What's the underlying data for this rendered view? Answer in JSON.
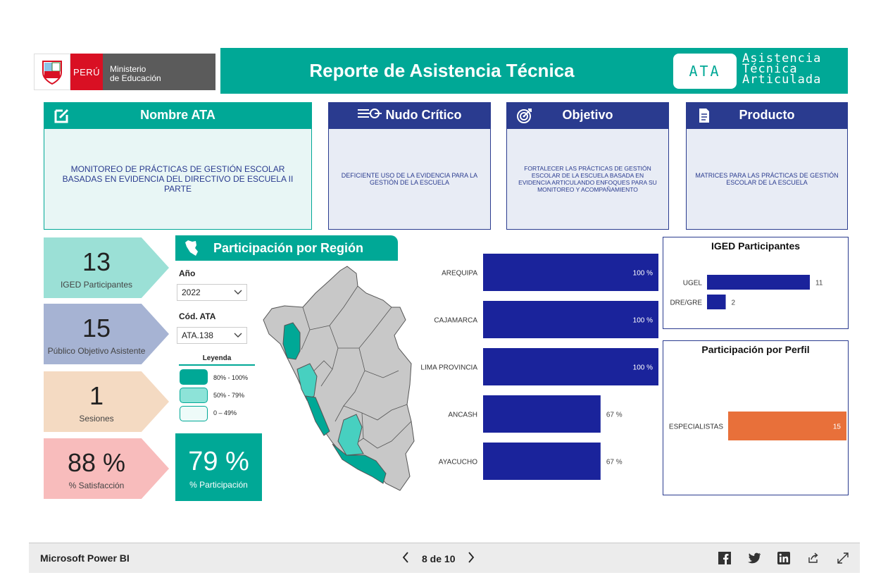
{
  "header": {
    "logo_country": "PERÚ",
    "logo_ministry_line1": "Ministerio",
    "logo_ministry_line2": "de Educación",
    "title": "Reporte de Asistencia Técnica",
    "badge": "ATA",
    "brand_line1": "Asistencia",
    "brand_line2": "Técnica",
    "brand_line3": "Articulada"
  },
  "cards": {
    "nombre": {
      "title": "Nombre ATA",
      "body": "MONITOREO DE PRÁCTICAS DE GESTIÓN ESCOLAR BASADAS EN EVIDENCIA DEL DIRECTIVO DE ESCUELA II PARTE",
      "icon": "edit-icon"
    },
    "nudo": {
      "title": "Nudo Crítico",
      "body": "DEFICIENTE USO DE LA EVIDENCIA PARA LA GESTIÓN DE LA ESCUELA",
      "icon": "node-icon"
    },
    "objetivo": {
      "title": "Objetivo",
      "body": "FORTALECER LAS PRÁCTICAS DE GESTIÓN ESCOLAR DE LA ESCUELA BASADA EN EVIDENCIA ARTICULANDO ENFOQUES PARA SU MONITOREO Y ACOMPAÑAMIENTO",
      "icon": "target-icon"
    },
    "producto": {
      "title": "Producto",
      "body": "MATRICES PARA LAS PRÁCTICAS DE GESTIÓN ESCOLAR DE LA ESCUELA",
      "icon": "document-icon"
    }
  },
  "kpis": {
    "iged": {
      "value": "13",
      "label": "IGED Participantes"
    },
    "publico": {
      "value": "15",
      "label": "Público Objetivo Asistente"
    },
    "sesiones": {
      "value": "1",
      "label": "Sesiones"
    },
    "satisfaccion": {
      "value": "88 %",
      "label": "% Satisfacción"
    }
  },
  "region": {
    "title": "Participación por Región",
    "year_label": "Año",
    "year_value": "2022",
    "code_label": "Cód. ATA",
    "code_value": "ATA.138",
    "legend_title": "Leyenda",
    "legend": [
      {
        "label": "80% - 100%",
        "color": "#00a896"
      },
      {
        "label": "50% - 79%",
        "color": "#8de3d8"
      },
      {
        "label": "0 – 49%",
        "color": "#eefbf9"
      }
    ],
    "participation_value": "79 %",
    "participation_label": "% Participación"
  },
  "colors": {
    "teal": "#00a896",
    "navy": "#2a3b8f",
    "bar_blue": "#1a239b",
    "orange": "#e8703a",
    "map_grey": "#c8c8c8"
  },
  "chart_data": [
    {
      "type": "bar",
      "orientation": "horizontal",
      "categories": [
        "AREQUIPA",
        "CAJAMARCA",
        "LIMA PROVINCIA",
        "ANCASH",
        "AYACUCHO"
      ],
      "values": [
        100,
        100,
        100,
        67,
        67
      ],
      "value_labels": [
        "100 %",
        "100 %",
        "100 %",
        "67 %",
        "67 %"
      ],
      "xlim": [
        0,
        100
      ]
    },
    {
      "type": "bar",
      "orientation": "horizontal",
      "title": "IGED Participantes",
      "categories": [
        "UGEL",
        "DRE/GRE"
      ],
      "values": [
        11,
        2
      ],
      "value_labels": [
        "11",
        "2"
      ],
      "xlim": [
        0,
        11
      ]
    },
    {
      "type": "bar",
      "orientation": "horizontal",
      "title": "Participación por Perfil",
      "categories": [
        "ESPECIALISTAS"
      ],
      "values": [
        15
      ],
      "value_labels": [
        "15"
      ],
      "xlim": [
        0,
        15
      ]
    }
  ],
  "footer": {
    "brand": "Microsoft Power BI",
    "page_indicator": "8 de 10"
  }
}
